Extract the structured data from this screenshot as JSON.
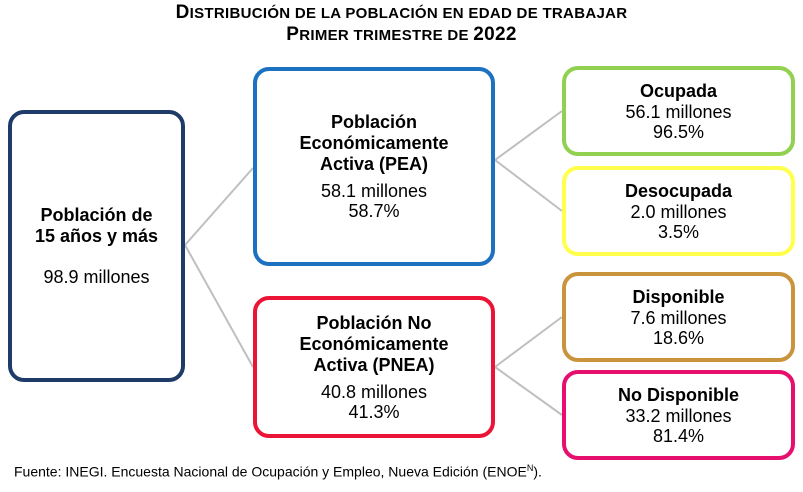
{
  "title": {
    "line1_first": "D",
    "line1_rest": "ISTRIBUCIÓN DE LA POBLACIÓN EN EDAD DE TRABAJAR",
    "line2_first": "P",
    "line2_rest": "RIMER TRIMESTRE DE ",
    "line2_year": "2022"
  },
  "total": {
    "label1": "Población de",
    "label2": "15 años y más",
    "value": "98.9 millones"
  },
  "pea": {
    "label1": "Población",
    "label2": "Económicamente",
    "label3": "Activa (PEA)",
    "value": "58.1 millones",
    "percent": "58.7%"
  },
  "pnea": {
    "label1": "Población No",
    "label2": "Económicamente",
    "label3": "Activa (PNEA)",
    "value": "40.8 millones",
    "percent": "41.3%"
  },
  "ocupada": {
    "label": "Ocupada",
    "value": "56.1 millones",
    "percent": "96.5%"
  },
  "desocupada": {
    "label": "Desocupada",
    "value": "2.0 millones",
    "percent": "3.5%"
  },
  "disponible": {
    "label": "Disponible",
    "value": "7.6 millones",
    "percent": "18.6%"
  },
  "no_disponible": {
    "label": "No Disponible",
    "value": "33.2 millones",
    "percent": "81.4%"
  },
  "footer": {
    "text": "Fuente: INEGI. Encuesta Nacional de Ocupación y Empleo, Nueva Edición (ENOE",
    "sup": "N",
    "end": ")."
  },
  "colors": {
    "total_border": "#1f3c68",
    "pea_border": "#1c71c1",
    "pnea_border": "#ec1436",
    "ocupada_border": "#92d050",
    "desocupada_border": "#ffff4c",
    "disponible_border": "#c9943c",
    "no_disponible_border": "#e60f6e",
    "connector": "#bfbfbf"
  }
}
